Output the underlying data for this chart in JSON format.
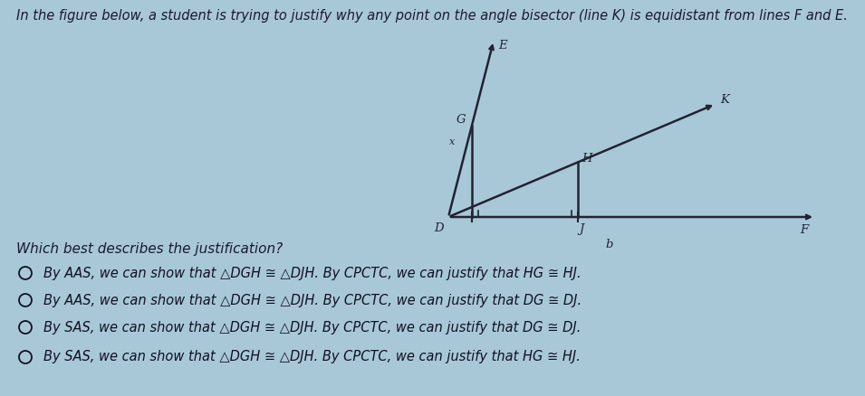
{
  "background_color": "#a8c8d8",
  "title_text": "In the figure below, a student is trying to justify why any point on the angle bisector (line K) is equidistant from lines F and E.",
  "title_fontsize": 10.5,
  "title_color": "#1a1a2e",
  "question_text": "Which best describes the justification?",
  "question_fontsize": 11,
  "question_color": "#1a1a2e",
  "options": [
    "By AAS, we can show that △DGH ≅ △DJH. By CPCTC, we can justify that HG ≅ HJ.",
    "By AAS, we can show that △DGH ≅ △DJH. By CPCTC, we can justify that DG ≅ DJ.",
    "By SAS, we can show that △DGH ≅ △DJH. By CPCTC, we can justify that DG ≅ DJ.",
    "By SAS, we can show that △DGH ≅ △DJH. By CPCTC, we can justify that HG ≅ HJ."
  ],
  "option_fontsize": 10.5,
  "option_color": "#111122",
  "circle_color": "#111122",
  "line_color": "#222233",
  "line_width": 1.8
}
